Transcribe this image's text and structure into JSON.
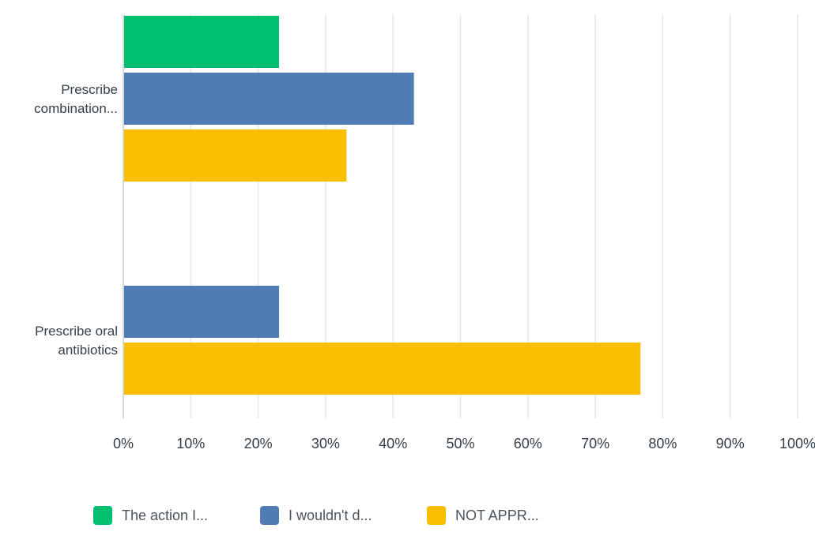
{
  "chart_data": {
    "type": "bar",
    "orientation": "horizontal",
    "categories": [
      [
        "Prescribe",
        "combination..."
      ],
      [
        "Prescribe oral",
        "antibiotics"
      ]
    ],
    "series": [
      {
        "name": "The action I...",
        "color": "#00bf6f",
        "values": [
          23.1,
          0
        ]
      },
      {
        "name": "I wouldn't d...",
        "color": "#507cb6",
        "values": [
          43.1,
          23.1
        ]
      },
      {
        "name": "NOT APPR...",
        "color": "#f9be00",
        "values": [
          33.1,
          76.7
        ]
      }
    ],
    "xlim": [
      0,
      100
    ],
    "xticks": [
      "0%",
      "10%",
      "20%",
      "30%",
      "40%",
      "50%",
      "60%",
      "70%",
      "80%",
      "90%",
      "100%"
    ],
    "grid": true,
    "legend": "bottom"
  }
}
